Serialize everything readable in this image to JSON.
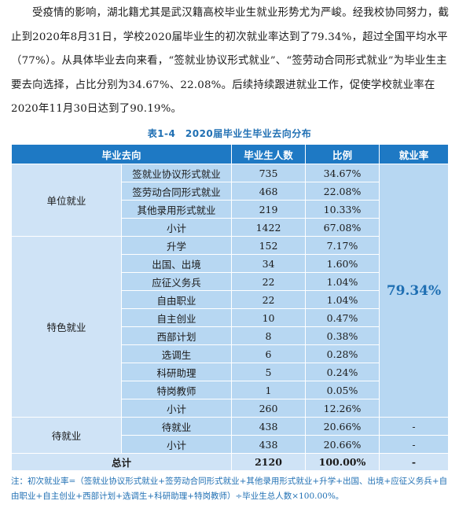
{
  "paragraph": "受疫情的影响，湖北籍尤其是武汉籍高校毕业生就业形势尤为严峻。经我校协同努力，截止到2020年8月31日，学校2020届毕业生的初次就业率达到了79.34%，超过全国平均水平（77%）。从具体毕业去向来看，“签就业协议形式就业”、“签劳动合同形式就业”为毕业生主要去向选择，占比分别为34.67%、22.08%。后续持续跟进就业工作，促使学校就业率在2020年11月30日达到了90.19%。",
  "caption": "表1-4　2020届毕业生毕业去向分布",
  "headers": [
    "毕业去向",
    "毕业生人数",
    "比例",
    "就业率"
  ],
  "groups": [
    {
      "name": "单位就业",
      "rows": [
        {
          "item": "签就业协议形式就业",
          "count": "735",
          "ratio": "34.67%"
        },
        {
          "item": "签劳动合同形式就业",
          "count": "468",
          "ratio": "22.08%"
        },
        {
          "item": "其他录用形式就业",
          "count": "219",
          "ratio": "10.33%"
        },
        {
          "item": "小计",
          "count": "1422",
          "ratio": "67.08%"
        }
      ]
    },
    {
      "name": "特色就业",
      "rows": [
        {
          "item": "升学",
          "count": "152",
          "ratio": "7.17%"
        },
        {
          "item": "出国、出境",
          "count": "34",
          "ratio": "1.60%"
        },
        {
          "item": "应征义务兵",
          "count": "22",
          "ratio": "1.04%"
        },
        {
          "item": "自由职业",
          "count": "22",
          "ratio": "1.04%"
        },
        {
          "item": "自主创业",
          "count": "10",
          "ratio": "0.47%"
        },
        {
          "item": "西部计划",
          "count": "8",
          "ratio": "0.38%"
        },
        {
          "item": "选调生",
          "count": "6",
          "ratio": "0.28%"
        },
        {
          "item": "科研助理",
          "count": "5",
          "ratio": "0.24%"
        },
        {
          "item": "特岗教师",
          "count": "1",
          "ratio": "0.05%"
        },
        {
          "item": "小计",
          "count": "260",
          "ratio": "12.26%"
        }
      ]
    },
    {
      "name": "待就业",
      "rows": [
        {
          "item": "待就业",
          "count": "438",
          "ratio": "20.66%",
          "rate": "-"
        },
        {
          "item": "小计",
          "count": "438",
          "ratio": "20.66%",
          "rate": "-"
        }
      ]
    }
  ],
  "employment_rate": "79.34%",
  "total": {
    "label": "总计",
    "count": "2120",
    "ratio": "100.00%",
    "rate": "-"
  },
  "note": "注：初次就业率=（签就业协议形式就业+签劳动合同形式就业+其他录用形式就业+升学+出国、出境+应征义务兵+自由职业+自主创业+西部计划+选调生+科研助理+特岗教师）÷毕业生总人数×100.00%。"
}
